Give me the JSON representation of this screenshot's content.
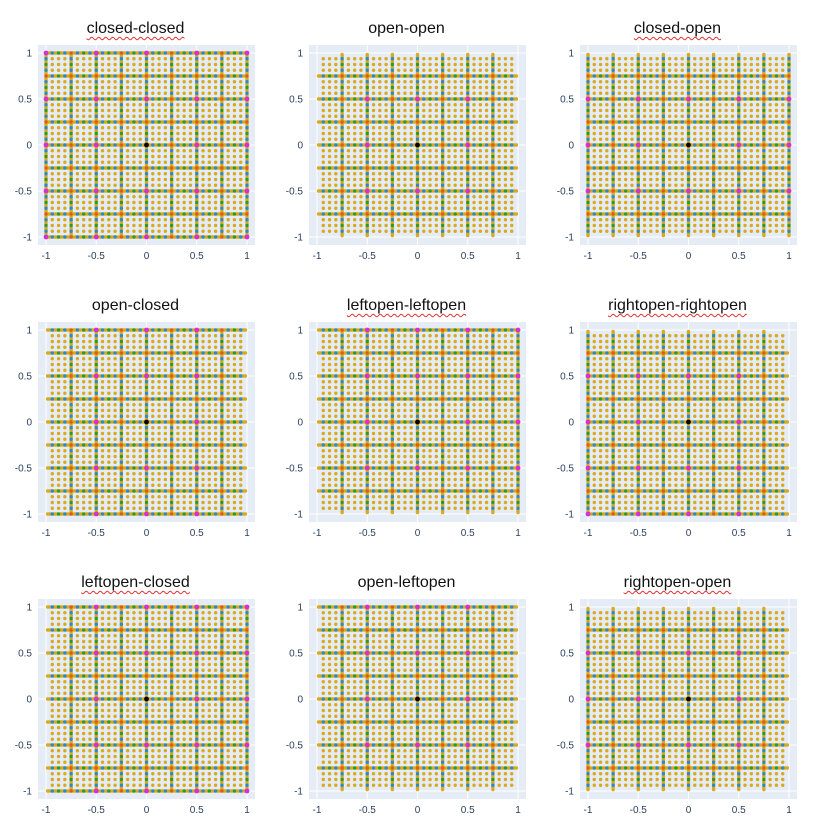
{
  "figure": {
    "colors": {
      "plot_bg": "#e5ecf6",
      "grid": "#ffffff",
      "level_colors": [
        "#000000",
        "#d62fd6",
        "#e2591c",
        "#2a9a2a",
        "#2a8ac6",
        "#d9aa1f"
      ]
    }
  },
  "chart_data": [
    {
      "type": "scatter",
      "title": "closed-closed",
      "x_interval": "closed",
      "y_interval": "closed",
      "xlim": [
        -1,
        1
      ],
      "ylim": [
        -1,
        1
      ],
      "grid": true,
      "xticks": [
        "-1",
        "-0.5",
        "0",
        "0.5",
        "1"
      ],
      "yticks": [
        "1",
        "0.5",
        "0",
        "-0.5",
        "-1"
      ],
      "levels": 6
    },
    {
      "type": "scatter",
      "title": "open-open",
      "x_interval": "open",
      "y_interval": "open",
      "xlim": [
        -1,
        1
      ],
      "ylim": [
        -1,
        1
      ],
      "grid": true,
      "xticks": [
        "-1",
        "-0.5",
        "0",
        "0.5",
        "1"
      ],
      "yticks": [
        "1",
        "0.5",
        "0",
        "-0.5",
        "-1"
      ],
      "levels": 6
    },
    {
      "type": "scatter",
      "title": "closed-open",
      "x_interval": "closed",
      "y_interval": "open",
      "xlim": [
        -1,
        1
      ],
      "ylim": [
        -1,
        1
      ],
      "grid": true,
      "xticks": [
        "-1",
        "-0.5",
        "0",
        "0.5",
        "1"
      ],
      "yticks": [
        "1",
        "0.5",
        "0",
        "-0.5",
        "-1"
      ],
      "levels": 6
    },
    {
      "type": "scatter",
      "title": "open-closed",
      "x_interval": "open",
      "y_interval": "closed",
      "xlim": [
        -1,
        1
      ],
      "ylim": [
        -1,
        1
      ],
      "grid": true,
      "xticks": [
        "-1",
        "-0.5",
        "0",
        "0.5",
        "1"
      ],
      "yticks": [
        "1",
        "0.5",
        "0",
        "-0.5",
        "-1"
      ],
      "levels": 6
    },
    {
      "type": "scatter",
      "title": "leftopen-leftopen",
      "x_interval": "leftopen",
      "y_interval": "leftopen",
      "xlim": [
        -1,
        1
      ],
      "ylim": [
        -1,
        1
      ],
      "grid": true,
      "xticks": [
        "-1",
        "-0.5",
        "0",
        "0.5",
        "1"
      ],
      "yticks": [
        "1",
        "0.5",
        "0",
        "-0.5",
        "-1"
      ],
      "levels": 6
    },
    {
      "type": "scatter",
      "title": "rightopen-rightopen",
      "x_interval": "rightopen",
      "y_interval": "rightopen",
      "xlim": [
        -1,
        1
      ],
      "ylim": [
        -1,
        1
      ],
      "grid": true,
      "xticks": [
        "-1",
        "-0.5",
        "0",
        "0.5",
        "1"
      ],
      "yticks": [
        "1",
        "0.5",
        "0",
        "-0.5",
        "-1"
      ],
      "levels": 6
    },
    {
      "type": "scatter",
      "title": "leftopen-closed",
      "x_interval": "leftopen",
      "y_interval": "closed",
      "xlim": [
        -1,
        1
      ],
      "ylim": [
        -1,
        1
      ],
      "grid": true,
      "xticks": [
        "-1",
        "-0.5",
        "0",
        "0.5",
        "1"
      ],
      "yticks": [
        "1",
        "0.5",
        "0",
        "-0.5",
        "-1"
      ],
      "levels": 6
    },
    {
      "type": "scatter",
      "title": "open-leftopen",
      "x_interval": "open",
      "y_interval": "leftopen",
      "xlim": [
        -1,
        1
      ],
      "ylim": [
        -1,
        1
      ],
      "grid": true,
      "xticks": [
        "-1",
        "-0.5",
        "0",
        "0.5",
        "1"
      ],
      "yticks": [
        "1",
        "0.5",
        "0",
        "-0.5",
        "-1"
      ],
      "levels": 6
    },
    {
      "type": "scatter",
      "title": "rightopen-open",
      "x_interval": "rightopen",
      "y_interval": "open",
      "xlim": [
        -1,
        1
      ],
      "ylim": [
        -1,
        1
      ],
      "grid": true,
      "xticks": [
        "-1",
        "-0.5",
        "0",
        "0.5",
        "1"
      ],
      "yticks": [
        "1",
        "0.5",
        "0",
        "-0.5",
        "-1"
      ],
      "levels": 6
    }
  ]
}
